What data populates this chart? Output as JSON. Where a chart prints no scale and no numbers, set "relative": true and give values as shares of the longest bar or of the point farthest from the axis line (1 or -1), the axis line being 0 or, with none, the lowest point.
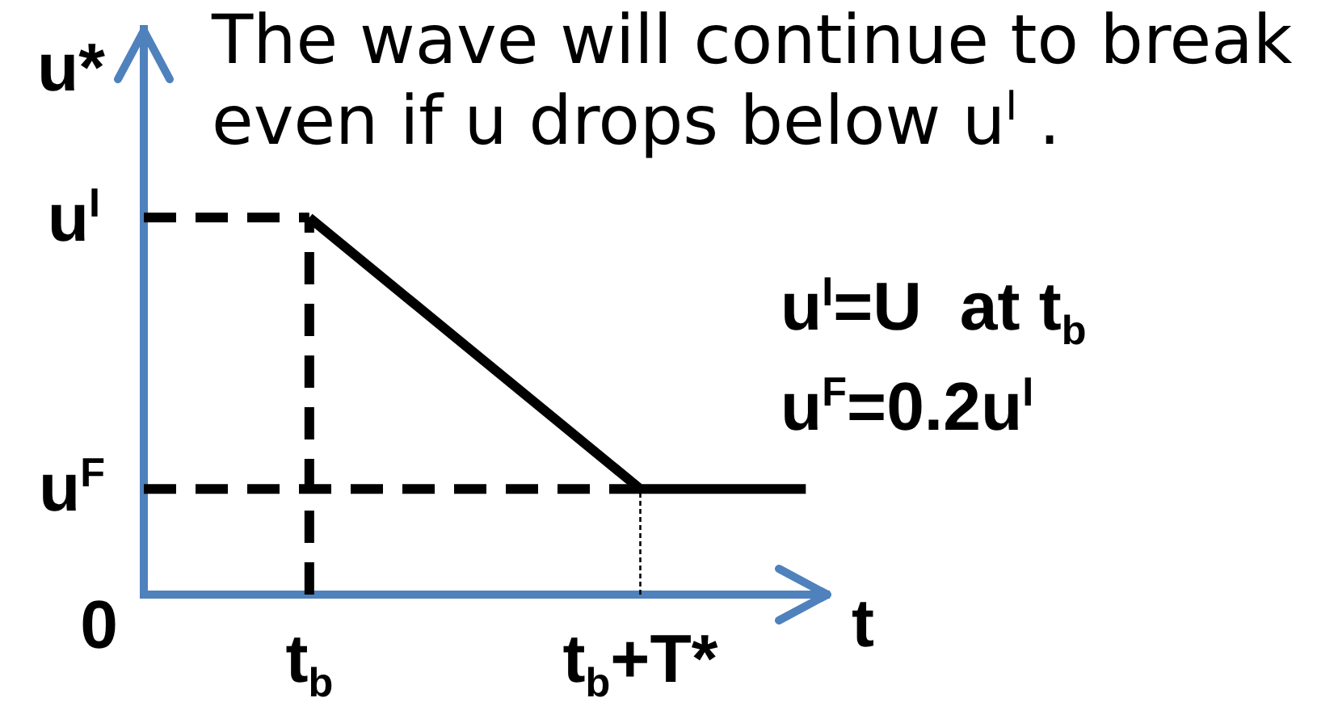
{
  "chart_data": {
    "type": "line",
    "xlabel": "t",
    "ylabel": "u*",
    "relative": true,
    "categories": [
      null,
      "t$_{b}$",
      null,
      "t$_{b}$+T*",
      null
    ],
    "annotations": [
      "The wave will continue to break even if u drops below u$^{I}$ .",
      "u$^{I}$=U  at t$_{b}$",
      "u$^{F}$=0.2u$^{I}$",
      "u$^{I}$",
      "u$^{F}$",
      "0"
    ],
    "grid": false,
    "legend": false,
    "marker": "none",
    "series": [
      {
        "color": "#000000",
        "values": [
          null,
          1,
          0.64,
          0.28,
          0.28
        ],
        "line_style": "solid"
      },
      {
        "color": "#000000",
        "values": [
          1,
          1,
          null,
          null,
          null
        ],
        "line_style": "dashed"
      },
      {
        "color": "#000000",
        "x": [
          "t$_{b}$",
          "t$_{b}$"
        ],
        "values": [
          0,
          1
        ],
        "line_style": "dashed"
      },
      {
        "color": "#000000",
        "values": [
          0.28,
          0.28,
          0.28,
          0.28,
          null
        ],
        "line_style": "dashed"
      },
      {
        "color": "#000000",
        "x": [
          "t$_{b}$+T*",
          "t$_{b}$+T*"
        ],
        "values": [
          0,
          0.28
        ],
        "line_style": "dotted"
      }
    ]
  }
}
